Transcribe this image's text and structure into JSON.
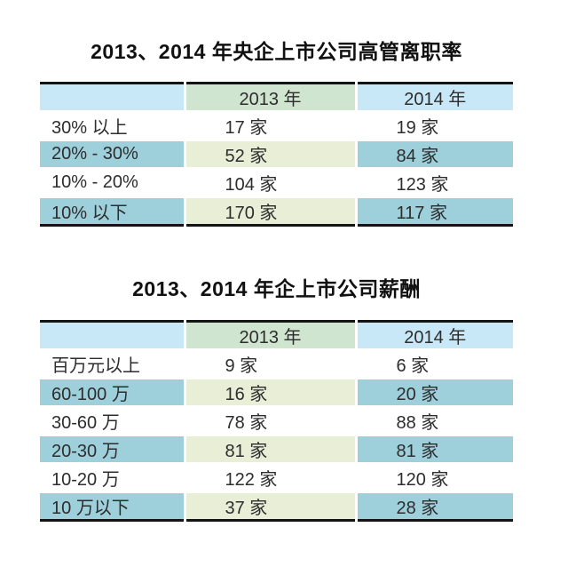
{
  "colors": {
    "header_blue": "#c8e8f8",
    "header_green": "#cfe5cf",
    "row_teal": "#9ed0dc",
    "row_yellow_green": "#e9efd6",
    "table_border_black": "#141414",
    "text": "#2d2d2d",
    "background": "#ffffff"
  },
  "chart_data": [
    {
      "type": "table",
      "title": "2013、2014 年央企上市公司高管离职率",
      "columns": [
        "",
        "2013 年",
        "2014 年"
      ],
      "rows": [
        [
          "30% 以上",
          "17 家",
          "19 家"
        ],
        [
          "20% - 30%",
          "52 家",
          "84 家"
        ],
        [
          "10% - 20%",
          "104 家",
          "123 家"
        ],
        [
          "10% 以下",
          "170 家",
          "117 家"
        ]
      ],
      "categories": [
        "30% 以上",
        "20% - 30%",
        "10% - 20%",
        "10% 以下"
      ],
      "series": [
        {
          "name": "2013 年",
          "values": [
            17,
            52,
            104,
            170
          ]
        },
        {
          "name": "2014 年",
          "values": [
            19,
            84,
            123,
            117
          ]
        }
      ],
      "unit": "家"
    },
    {
      "type": "table",
      "title": "2013、2014 年企上市公司薪酬",
      "columns": [
        "",
        "2013 年",
        "2014 年"
      ],
      "rows": [
        [
          "百万元以上",
          "9 家",
          "6 家"
        ],
        [
          "60-100 万",
          "16 家",
          "20 家"
        ],
        [
          "30-60 万",
          "78 家",
          "88 家"
        ],
        [
          "20-30 万",
          "81 家",
          "81 家"
        ],
        [
          "10-20 万",
          "122 家",
          "120 家"
        ],
        [
          "10 万以下",
          "37 家",
          "28 家"
        ]
      ],
      "categories": [
        "百万元以上",
        "60-100 万",
        "30-60 万",
        "20-30 万",
        "10-20 万",
        "10 万以下"
      ],
      "series": [
        {
          "name": "2013 年",
          "values": [
            9,
            16,
            78,
            81,
            122,
            37
          ]
        },
        {
          "name": "2014 年",
          "values": [
            6,
            20,
            88,
            81,
            120,
            28
          ]
        }
      ],
      "unit": "家"
    }
  ]
}
